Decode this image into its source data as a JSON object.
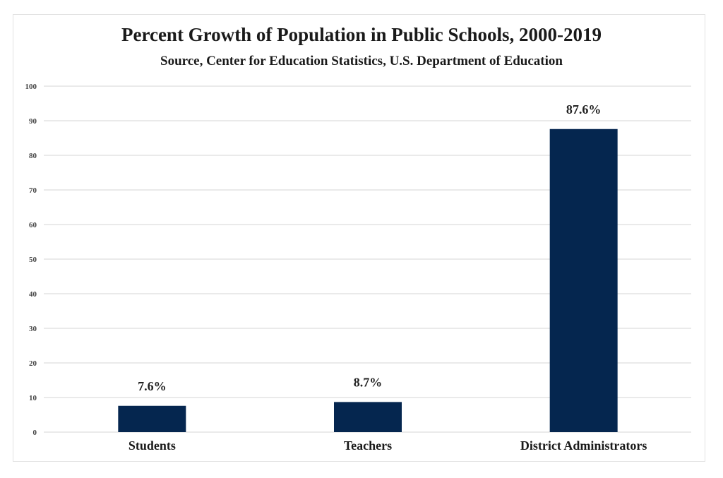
{
  "chart_data": {
    "type": "bar",
    "title": "Percent Growth of Population in Public Schools, 2000-2019",
    "subtitle": "Source, Center for Education Statistics, U.S. Department of Education",
    "categories": [
      "Students",
      "Teachers",
      "District Administrators"
    ],
    "values": [
      7.6,
      8.7,
      87.6
    ],
    "data_labels": [
      "7.6%",
      "8.7%",
      "87.6%"
    ],
    "xlabel": "",
    "ylabel": "",
    "ylim": [
      0,
      100
    ],
    "yticks": [
      0,
      10,
      20,
      30,
      40,
      50,
      60,
      70,
      80,
      90,
      100
    ],
    "grid": true,
    "bar_color": "#05264f",
    "grid_color": "#e3e3e3"
  }
}
